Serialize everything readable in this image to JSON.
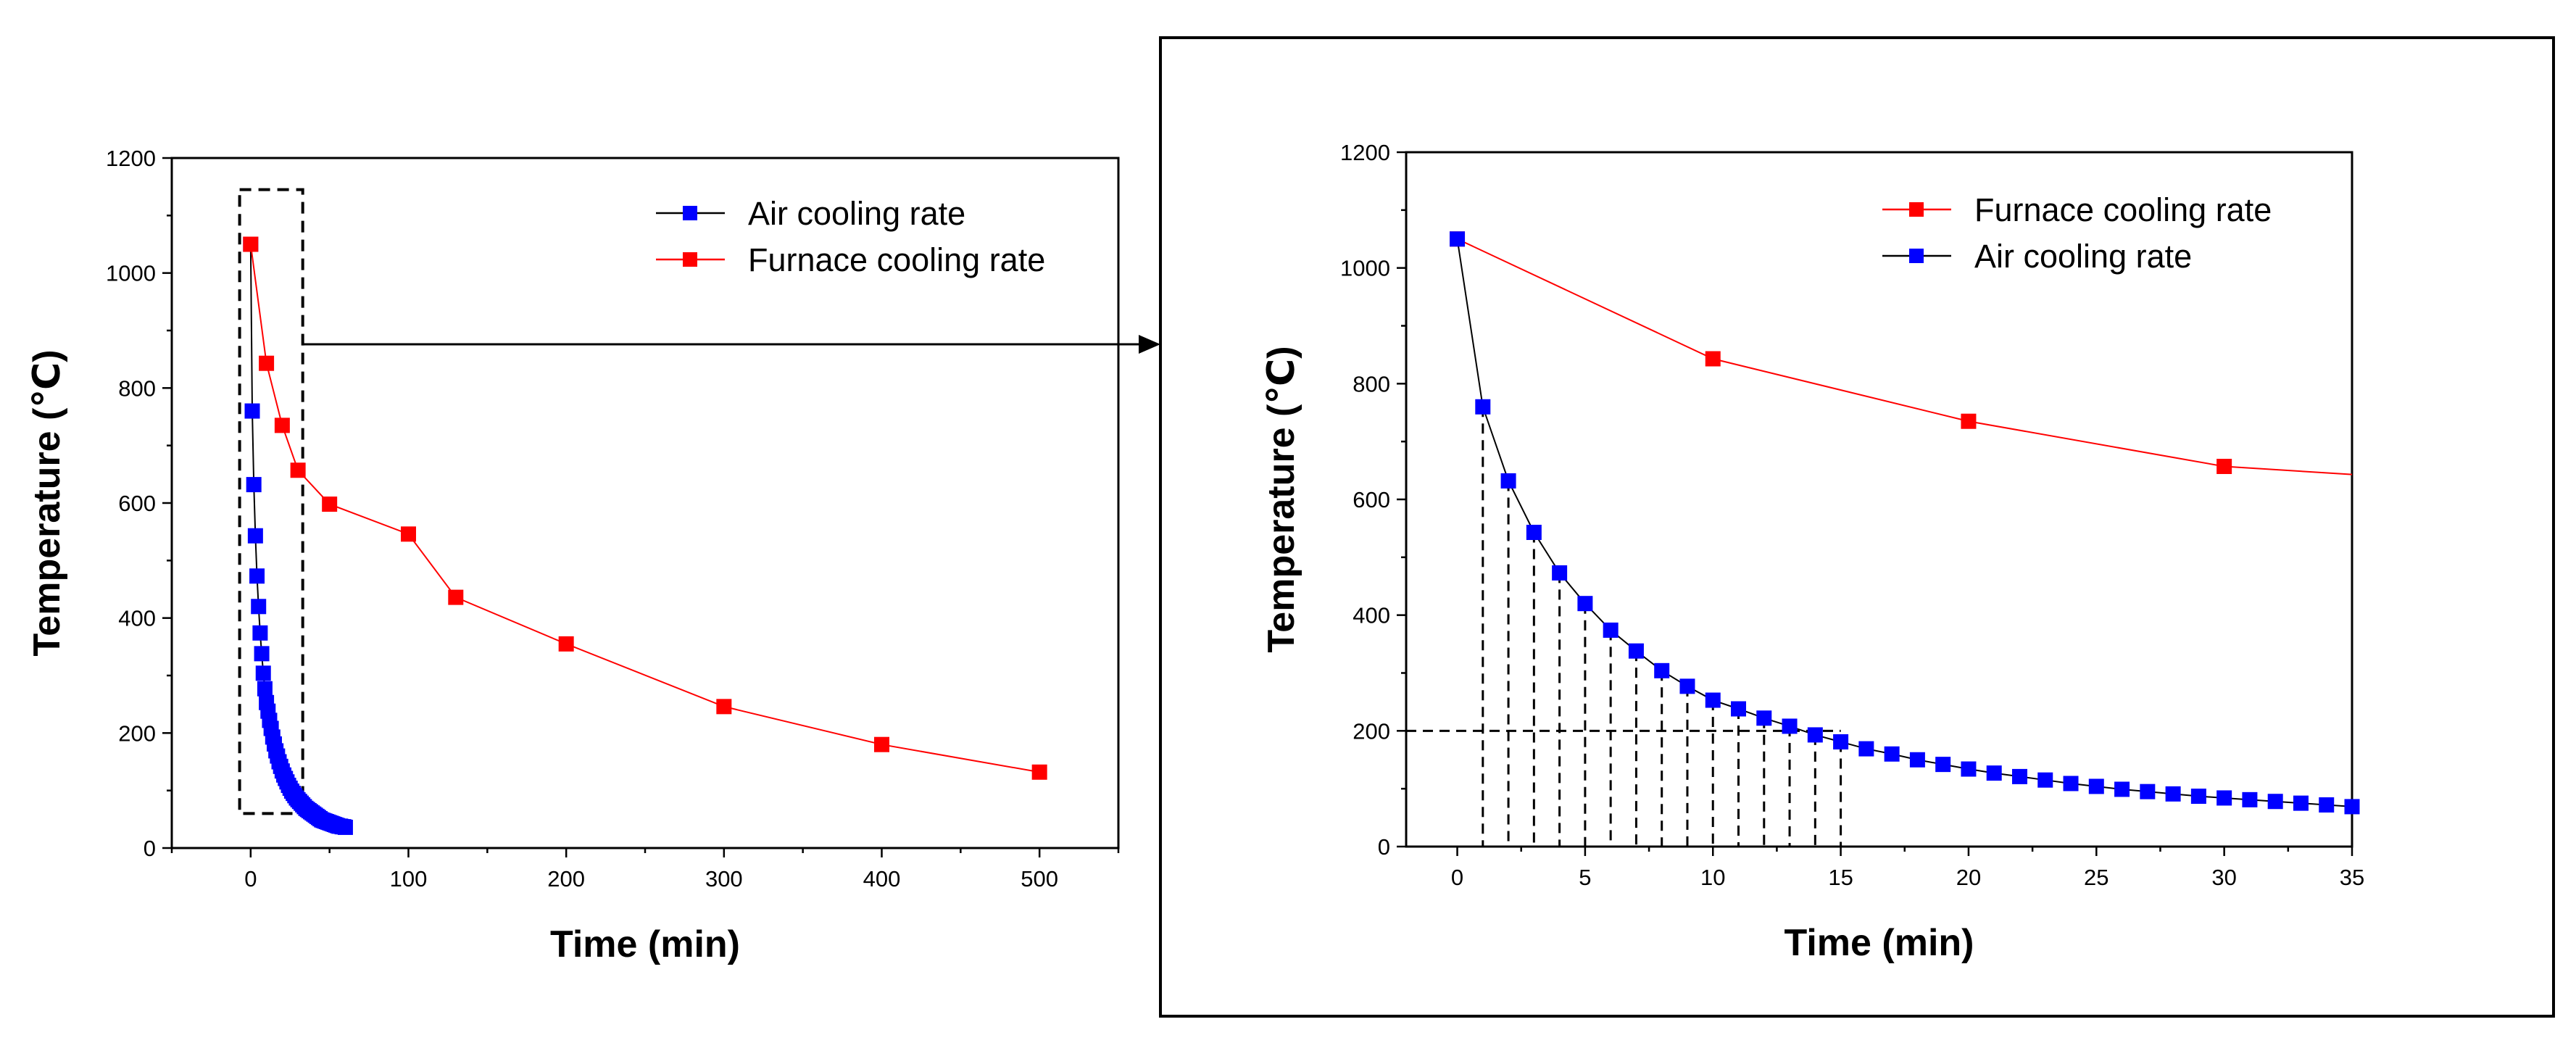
{
  "figure": {
    "colors": {
      "air": "#0000ff",
      "furnace": "#ff0000",
      "air_line": "#000000",
      "furnace_line": "#ff0000",
      "frame": "#000000"
    }
  },
  "chart_data": [
    {
      "id": "overview",
      "type": "line",
      "xlabel": "Time (min)",
      "ylabel": "Temperature (℃)",
      "xlim": [
        -50,
        550
      ],
      "ylim": [
        0,
        1200
      ],
      "xticks": [
        0,
        100,
        200,
        300,
        400,
        500
      ],
      "yticks": [
        0,
        200,
        400,
        600,
        800,
        1000,
        1200
      ],
      "legend": {
        "position": "top-right",
        "entries": [
          "Air cooling rate",
          "Furnace cooling rate"
        ]
      },
      "series": [
        {
          "name": "Air cooling rate",
          "color": "#0000ff",
          "line_color": "#000000",
          "x": [
            0,
            1,
            2,
            3,
            4,
            5,
            6,
            7,
            8,
            9,
            10,
            11,
            12,
            13,
            14,
            15,
            16,
            17,
            18,
            19,
            20,
            21,
            22,
            23,
            24,
            25,
            26,
            27,
            28,
            29,
            30,
            31,
            32,
            33,
            34,
            35,
            36,
            37,
            38,
            39,
            40,
            41,
            42,
            43,
            44,
            45,
            46,
            47,
            48,
            49,
            50,
            51,
            52,
            53,
            54,
            55,
            56,
            57,
            58,
            59,
            60
          ],
          "y": [
            1050,
            760,
            632,
            543,
            473,
            420,
            374,
            338,
            304,
            277,
            253,
            238,
            222,
            208,
            193,
            181,
            169,
            160,
            150,
            142,
            134,
            127,
            121,
            115,
            109,
            104,
            99,
            95,
            91,
            87,
            84,
            81,
            78,
            75,
            72,
            69,
            67,
            65,
            63,
            61,
            59,
            57,
            55,
            53,
            51,
            49,
            48,
            47,
            46,
            45,
            44,
            43,
            42,
            41,
            40,
            39,
            38,
            38,
            37,
            37,
            36
          ]
        },
        {
          "name": "Furnace cooling rate",
          "color": "#ff0000",
          "line_color": "#ff0000",
          "x": [
            0,
            10,
            20,
            30,
            50,
            100,
            130,
            200,
            300,
            400,
            500
          ],
          "y": [
            1050,
            843,
            735,
            657,
            598,
            546,
            436,
            355,
            246,
            180,
            132
          ]
        }
      ],
      "annotations": {
        "zoom_box": {
          "x0": -7,
          "x1": 33,
          "y0": 60,
          "y1": 1145,
          "style": "dashed"
        },
        "arrow": {
          "from_x": 33,
          "from_y": 876,
          "to": "zoom-panel",
          "style": "solid"
        }
      }
    },
    {
      "id": "zoom",
      "type": "line",
      "xlabel": "Time (min)",
      "ylabel": "Temperature (℃)",
      "xlim": [
        -2,
        35
      ],
      "ylim": [
        0,
        1200
      ],
      "xticks": [
        0,
        5,
        10,
        15,
        20,
        25,
        30,
        35
      ],
      "yticks": [
        0,
        200,
        400,
        600,
        800,
        1000,
        1200
      ],
      "legend": {
        "position": "top-right",
        "entries": [
          "Furnace cooling rate",
          "Air cooling rate"
        ]
      },
      "series": [
        {
          "name": "Furnace cooling rate",
          "color": "#ff0000",
          "line_color": "#ff0000",
          "x": [
            0,
            10,
            20,
            30,
            35
          ],
          "y": [
            1050,
            843,
            735,
            657,
            643
          ],
          "marker_mask": [
            true,
            true,
            true,
            true,
            false
          ]
        },
        {
          "name": "Air cooling rate",
          "color": "#0000ff",
          "line_color": "#000000",
          "x": [
            0,
            1,
            2,
            3,
            4,
            5,
            6,
            7,
            8,
            9,
            10,
            11,
            12,
            13,
            14,
            15,
            16,
            17,
            18,
            19,
            20,
            21,
            22,
            23,
            24,
            25,
            26,
            27,
            28,
            29,
            30,
            31,
            32,
            33,
            34,
            35
          ],
          "y": [
            1050,
            760,
            632,
            543,
            473,
            420,
            374,
            338,
            304,
            277,
            253,
            238,
            222,
            208,
            193,
            181,
            169,
            160,
            150,
            142,
            134,
            127,
            121,
            115,
            109,
            104,
            99,
            95,
            91,
            87,
            84,
            81,
            78,
            75,
            72,
            69
          ]
        }
      ],
      "annotations": {
        "reference_line_y": 200,
        "reference_line_x_end": 15,
        "drop_lines_x": [
          1,
          2,
          3,
          4,
          5,
          6,
          7,
          8,
          9,
          10,
          11,
          12,
          13,
          14,
          15
        ]
      }
    }
  ]
}
